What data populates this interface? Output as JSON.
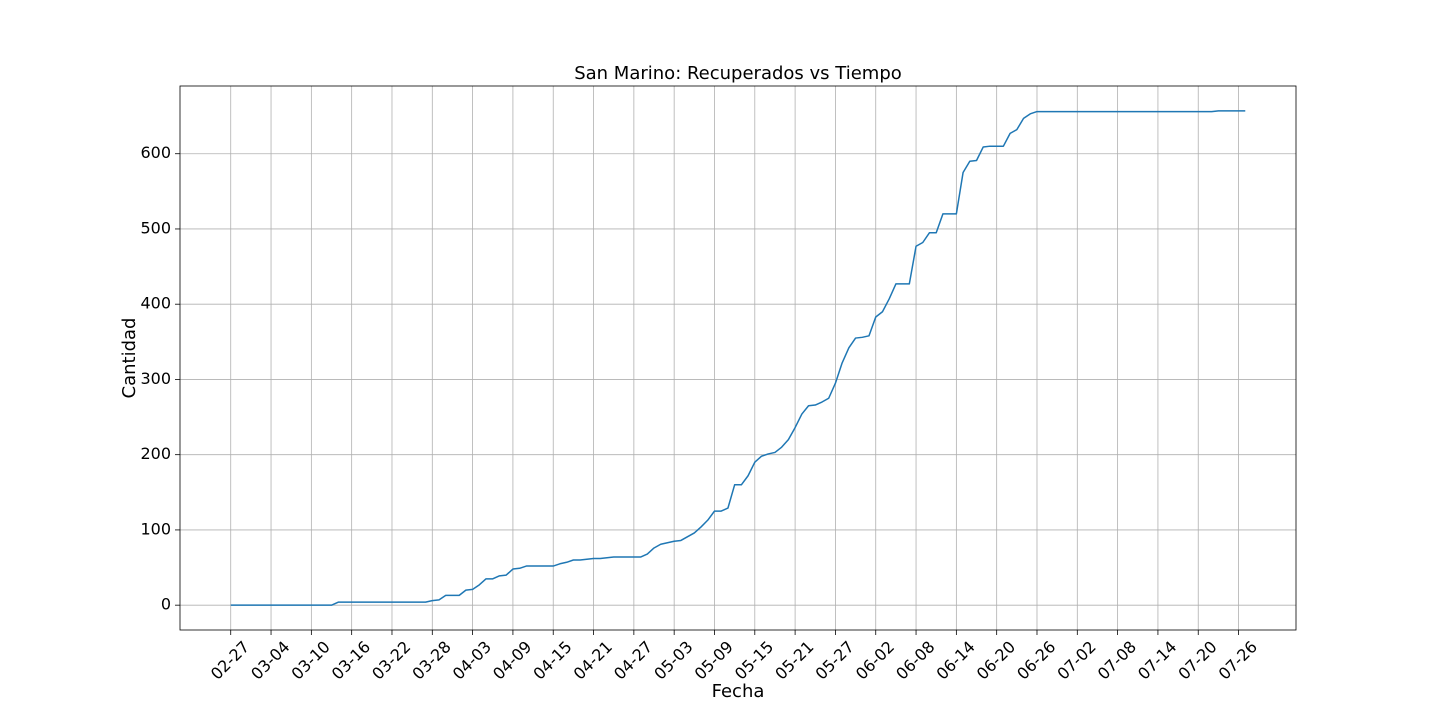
{
  "chart_data": {
    "type": "line",
    "title": "San Marino: Recuperados vs Tiempo",
    "x_label": "Fecha",
    "y_label": "Cantidad",
    "x": [
      "02-27",
      "02-28",
      "02-29",
      "03-01",
      "03-02",
      "03-03",
      "03-04",
      "03-05",
      "03-06",
      "03-07",
      "03-08",
      "03-09",
      "03-10",
      "03-11",
      "03-12",
      "03-13",
      "03-14",
      "03-15",
      "03-16",
      "03-17",
      "03-18",
      "03-19",
      "03-20",
      "03-21",
      "03-22",
      "03-23",
      "03-24",
      "03-25",
      "03-26",
      "03-27",
      "03-28",
      "03-29",
      "03-30",
      "03-31",
      "04-01",
      "04-02",
      "04-03",
      "04-04",
      "04-05",
      "04-06",
      "04-07",
      "04-08",
      "04-09",
      "04-10",
      "04-11",
      "04-12",
      "04-13",
      "04-14",
      "04-15",
      "04-16",
      "04-17",
      "04-18",
      "04-19",
      "04-20",
      "04-21",
      "04-22",
      "04-23",
      "04-24",
      "04-25",
      "04-26",
      "04-27",
      "04-28",
      "04-29",
      "04-30",
      "05-01",
      "05-02",
      "05-03",
      "05-04",
      "05-05",
      "05-06",
      "05-07",
      "05-08",
      "05-09",
      "05-10",
      "05-11",
      "05-12",
      "05-13",
      "05-14",
      "05-15",
      "05-16",
      "05-17",
      "05-18",
      "05-19",
      "05-20",
      "05-21",
      "05-22",
      "05-23",
      "05-24",
      "05-25",
      "05-26",
      "05-27",
      "05-28",
      "05-29",
      "05-30",
      "05-31",
      "06-01",
      "06-02",
      "06-03",
      "06-04",
      "06-05",
      "06-06",
      "06-07",
      "06-08",
      "06-09",
      "06-10",
      "06-11",
      "06-12",
      "06-13",
      "06-14",
      "06-15",
      "06-16",
      "06-17",
      "06-18",
      "06-19",
      "06-20",
      "06-21",
      "06-22",
      "06-23",
      "06-24",
      "06-25",
      "06-26",
      "06-27",
      "06-28",
      "06-29",
      "06-30",
      "07-01",
      "07-02",
      "07-03",
      "07-04",
      "07-05",
      "07-06",
      "07-07",
      "07-08",
      "07-09",
      "07-10",
      "07-11",
      "07-12",
      "07-13",
      "07-14",
      "07-15",
      "07-16",
      "07-17",
      "07-18",
      "07-19",
      "07-20",
      "07-21",
      "07-22",
      "07-23",
      "07-24",
      "07-25",
      "07-26",
      "07-27"
    ],
    "series": [
      {
        "name": "Recuperados",
        "color": "#1f77b4",
        "values": [
          0,
          0,
          0,
          0,
          0,
          0,
          0,
          0,
          0,
          0,
          0,
          0,
          0,
          0,
          0,
          0,
          4,
          4,
          4,
          4,
          4,
          4,
          4,
          4,
          4,
          4,
          4,
          4,
          4,
          4,
          6,
          7,
          13,
          13,
          13,
          20,
          21,
          27,
          35,
          35,
          39,
          40,
          48,
          49,
          52,
          52,
          52,
          52,
          52,
          55,
          57,
          60,
          60,
          61,
          62,
          62,
          63,
          64,
          64,
          64,
          64,
          64,
          68,
          76,
          81,
          83,
          85,
          86,
          91,
          96,
          104,
          113,
          125,
          125,
          129,
          160,
          160,
          172,
          190,
          198,
          201,
          203,
          210,
          220,
          236,
          254,
          265,
          266,
          270,
          275,
          295,
          322,
          342,
          355,
          356,
          358,
          383,
          390,
          407,
          427,
          427,
          427,
          477,
          482,
          495,
          495,
          520,
          520,
          520,
          575,
          590,
          591,
          609,
          610,
          610,
          610,
          627,
          632,
          647,
          653,
          656,
          656,
          656,
          656,
          656,
          656,
          656,
          656,
          656,
          656,
          656,
          656,
          656,
          656,
          656,
          656,
          656,
          656,
          656,
          656,
          656,
          656,
          656,
          656,
          656,
          656,
          656,
          657,
          657,
          657,
          657,
          657
        ]
      }
    ],
    "xticks": [
      "02-27",
      "03-04",
      "03-10",
      "03-16",
      "03-22",
      "03-28",
      "04-03",
      "04-09",
      "04-15",
      "04-21",
      "04-27",
      "05-03",
      "05-09",
      "05-15",
      "05-21",
      "05-27",
      "06-02",
      "06-08",
      "06-14",
      "06-20",
      "06-26",
      "07-02",
      "07-08",
      "07-14",
      "07-20",
      "07-26"
    ],
    "ylim": [
      -33,
      690
    ],
    "yticks": [
      0,
      100,
      200,
      300,
      400,
      500,
      600
    ],
    "grid": true
  }
}
